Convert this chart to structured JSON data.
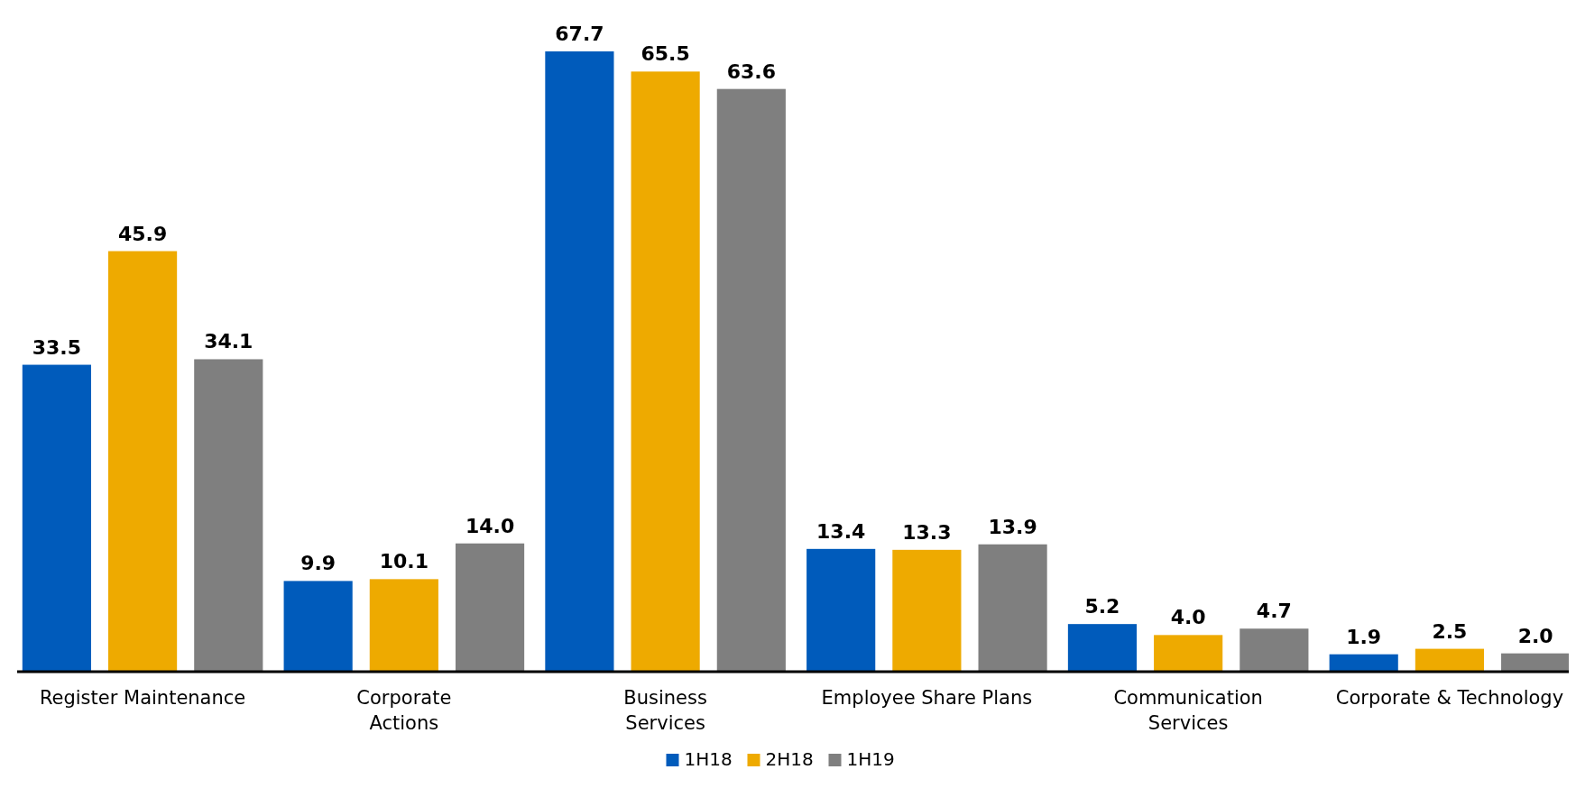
{
  "chart_data": {
    "type": "bar",
    "categories": [
      "Register Maintenance",
      "Corporate\nActions",
      "Business\nServices",
      "Employee Share Plans",
      "Communication\nServices",
      "Corporate & Technology"
    ],
    "series": [
      {
        "name": "1H18",
        "color": "#005bbb",
        "values": [
          33.5,
          9.9,
          67.7,
          13.4,
          5.2,
          1.9
        ],
        "value_labels": [
          "33.5",
          "9.9",
          "67.7",
          "13.4",
          "5.2",
          "1.9"
        ]
      },
      {
        "name": "2H18",
        "color": "#eeaa00",
        "values": [
          45.9,
          10.1,
          65.5,
          13.3,
          4.0,
          2.5
        ],
        "value_labels": [
          "45.9",
          "10.1",
          "65.5",
          "13.3",
          "4.0",
          "2.5"
        ]
      },
      {
        "name": "1H19",
        "color": "#7f7f7f",
        "values": [
          34.1,
          14.0,
          63.6,
          13.9,
          4.7,
          2.0
        ],
        "value_labels": [
          "34.1",
          "14.0",
          "63.6",
          "13.9",
          "4.7",
          "2.0"
        ]
      }
    ],
    "legend": "bottom"
  }
}
